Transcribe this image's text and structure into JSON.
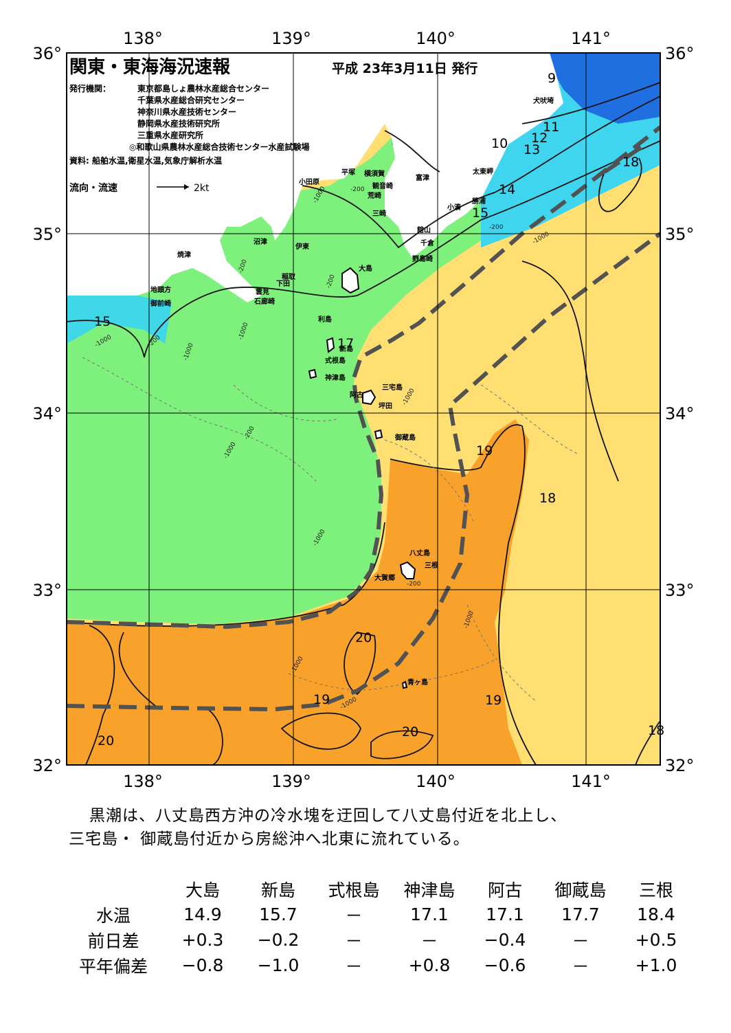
{
  "map": {
    "title": "関東・東海海況速報",
    "issue_date": "平成 23年3月11日 発行",
    "publisher_label": "発行機関：",
    "publishers": [
      "東京都島しょ農林水産総合センター",
      "千葉県水産総合研究センター",
      "神奈川県水産技術センター",
      "静岡県水産技術研究所",
      "三重県水産研究所",
      "◎和歌山県農林水産総合技術センター水産試験場"
    ],
    "source": "資料: 船舶水温,衛星水温,気象庁解析水温",
    "legend_label": "流向・流速",
    "legend_speed": "2kt",
    "lon_labels": [
      "138°",
      "139°",
      "140°",
      "141°"
    ],
    "lat_labels": [
      "36°",
      "35°",
      "34°",
      "33°",
      "32°"
    ],
    "place_names": [
      "犬吠埼",
      "太東岬",
      "勝浦",
      "小湊",
      "富津",
      "横須賀",
      "観音崎",
      "荒崎",
      "三崎",
      "平塚",
      "小田原",
      "館山",
      "千倉",
      "野島崎",
      "沼津",
      "伊東",
      "焼津",
      "稲取",
      "下田",
      "雲見",
      "石廊崎",
      "地頭方",
      "御前崎",
      "大島",
      "利島",
      "新島",
      "式根島",
      "神津島",
      "三宅島",
      "阿古",
      "坪田",
      "御蔵島",
      "八丈島",
      "三根",
      "大賀郷",
      "青ヶ島"
    ],
    "isotherm_labels": [
      "9",
      "10",
      "11",
      "12",
      "13",
      "14",
      "15",
      "15",
      "17",
      "18",
      "18",
      "19",
      "19",
      "19",
      "20",
      "20",
      "20",
      "18"
    ],
    "depth_labels": [
      "-200",
      "-1000"
    ],
    "colors": {
      "cold": "#1f6fe0",
      "cyan": "#3fd7f2",
      "green": "#7ff07c",
      "yellow": "#ffe070",
      "orange": "#f5a830",
      "kuroshio_axis": "#505050"
    }
  },
  "summary": {
    "line1": "黒潮は、八丈島西方沖の冷水塊を迂回して八丈島付近を北上し、",
    "line2": "三宅島・ 御蔵島付近から房総沖へ北東に流れている。"
  },
  "table": {
    "headers": [
      "大島",
      "新島",
      "式根島",
      "神津島",
      "阿古",
      "御蔵島",
      "三根"
    ],
    "rows": [
      {
        "label": "水温",
        "values": [
          "14.9",
          "15.7",
          "－",
          "17.1",
          "17.1",
          "17.7",
          "18.4"
        ]
      },
      {
        "label": "前日差",
        "values": [
          "+0.3",
          "−0.2",
          "－",
          "－",
          "−0.4",
          "－",
          "+0.5"
        ]
      },
      {
        "label": "平年偏差",
        "values": [
          "−0.8",
          "−1.0",
          "－",
          "+0.8",
          "−0.6",
          "－",
          "+1.0"
        ]
      }
    ]
  }
}
